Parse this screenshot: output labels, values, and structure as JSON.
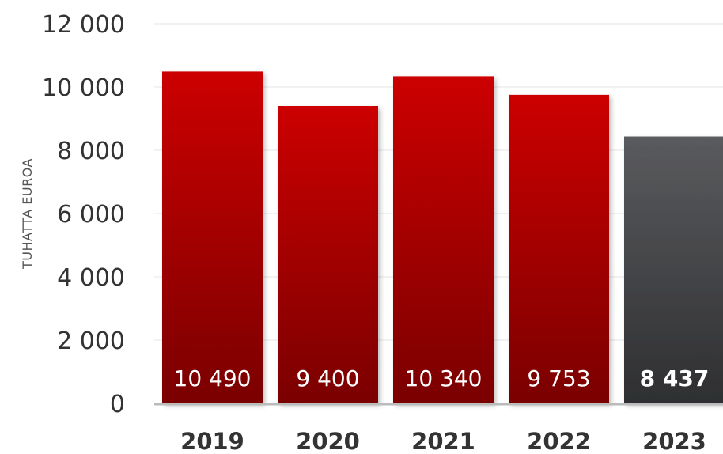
{
  "chart_data": {
    "type": "bar",
    "ylabel": "TUHATTA EUROA",
    "ylim": [
      0,
      12000
    ],
    "yticks": [
      0,
      2000,
      4000,
      6000,
      8000,
      10000,
      12000
    ],
    "ytick_labels": [
      "0",
      "2 000",
      "4 000",
      "6 000",
      "8 000",
      "10 000",
      "12 000"
    ],
    "categories": [
      "2019",
      "2020",
      "2021",
      "2022",
      "2023"
    ],
    "values": [
      10490,
      9400,
      10340,
      9753,
      8437
    ],
    "value_labels": [
      "10 490",
      "9 400",
      "10 340",
      "9 753",
      "8 437"
    ],
    "highlight_index": 4,
    "grid": true,
    "colors": {
      "bar_top": "#cc0000",
      "bar_bottom": "#7a0000",
      "highlight_top": "#5a5b5e",
      "highlight_bottom": "#2e2f31",
      "grid": "#eeeeee",
      "baseline": "#bbbbbb",
      "text": "#333333"
    }
  }
}
